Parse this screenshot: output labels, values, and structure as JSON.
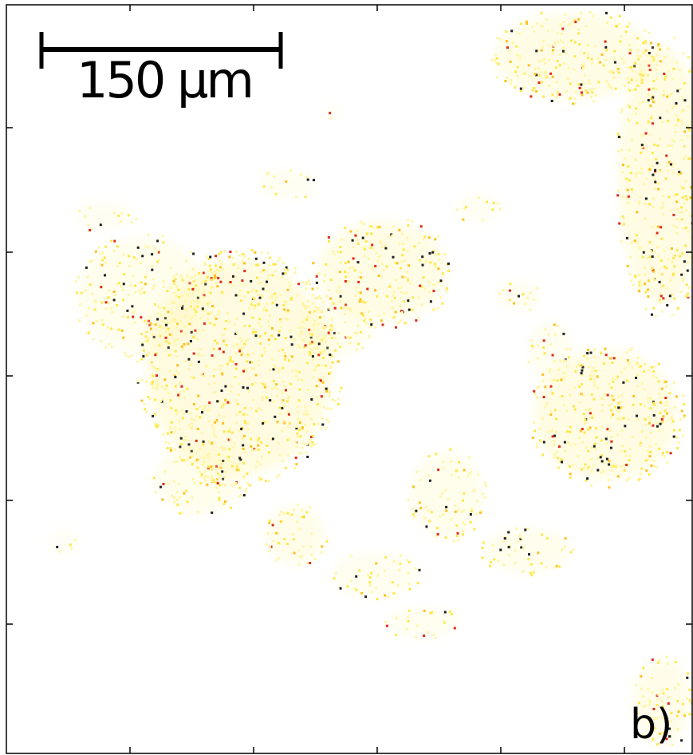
{
  "image": {
    "kind": "fluorescence intensity map (microscopy)",
    "colormap": [
      "#ffffff",
      "#fff6a8",
      "#ffe84a",
      "#ffc020",
      "#ff6a1a",
      "#e0281a",
      "#202020"
    ],
    "background": "#ffffff"
  },
  "scale_bar": {
    "label": "150 µm"
  },
  "panel_label": "b)"
}
